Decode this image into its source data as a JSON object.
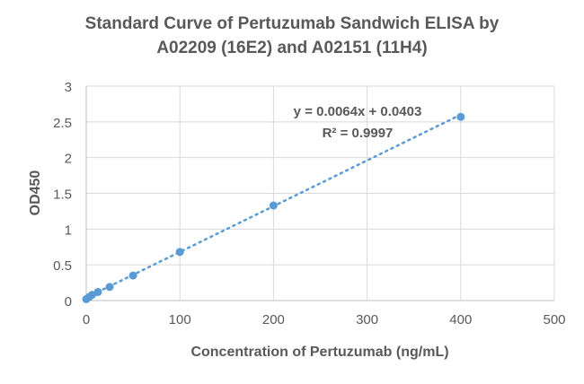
{
  "chart_data": {
    "type": "scatter",
    "title_line1": "Standard Curve of Pertuzumab Sandwich ELISA by",
    "title_line2": "A02209 (16E2) and A02151 (11H4)",
    "xlabel": "Concentration of Pertuzumab (ng/mL)",
    "ylabel": "OD450",
    "xlim": [
      0,
      500
    ],
    "ylim": [
      0,
      3
    ],
    "xticks": [
      "0",
      "100",
      "200",
      "300",
      "400",
      "500"
    ],
    "yticks": [
      "0",
      "0.5",
      "1",
      "1.5",
      "2",
      "2.5",
      "3"
    ],
    "grid": true,
    "x": [
      0,
      3.13,
      6.25,
      12.5,
      25,
      50,
      100,
      200,
      400
    ],
    "y": [
      0.02,
      0.05,
      0.08,
      0.12,
      0.19,
      0.35,
      0.68,
      1.33,
      2.57
    ],
    "trendline": {
      "type": "linear",
      "slope": 0.0064,
      "intercept": 0.0403,
      "style": "dotted"
    },
    "equation_label": "y = 0.0064x + 0.0403",
    "r2_label": "R² = 0.9997",
    "colors": {
      "marker": "#5b9bd5",
      "text": "#595959",
      "grid": "#d9d9d9"
    }
  }
}
